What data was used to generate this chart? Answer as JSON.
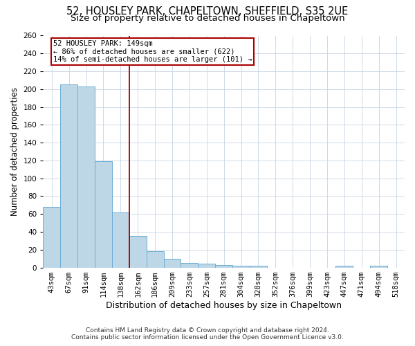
{
  "title1": "52, HOUSLEY PARK, CHAPELTOWN, SHEFFIELD, S35 2UE",
  "title2": "Size of property relative to detached houses in Chapeltown",
  "xlabel": "Distribution of detached houses by size in Chapeltown",
  "ylabel": "Number of detached properties",
  "footnote1": "Contains HM Land Registry data © Crown copyright and database right 2024.",
  "footnote2": "Contains public sector information licensed under the Open Government Licence v3.0.",
  "categories": [
    "43sqm",
    "67sqm",
    "91sqm",
    "114sqm",
    "138sqm",
    "162sqm",
    "186sqm",
    "209sqm",
    "233sqm",
    "257sqm",
    "281sqm",
    "304sqm",
    "328sqm",
    "352sqm",
    "376sqm",
    "399sqm",
    "423sqm",
    "447sqm",
    "471sqm",
    "494sqm",
    "518sqm"
  ],
  "values": [
    68,
    205,
    203,
    119,
    62,
    35,
    18,
    10,
    5,
    4,
    3,
    2,
    2,
    0,
    0,
    0,
    0,
    2,
    0,
    2,
    0
  ],
  "bar_color": "#BDD7E7",
  "bar_edge_color": "#6BAED6",
  "bar_linewidth": 0.7,
  "grid_color": "#C8D4E3",
  "annotation_line1": "52 HOUSLEY PARK: 149sqm",
  "annotation_line2": "← 86% of detached houses are smaller (622)",
  "annotation_line3": "14% of semi-detached houses are larger (101) →",
  "vline_color": "#AA0000",
  "box_color": "#AA0000",
  "ylim": [
    0,
    260
  ],
  "yticks": [
    0,
    20,
    40,
    60,
    80,
    100,
    120,
    140,
    160,
    180,
    200,
    220,
    240,
    260
  ],
  "bg_color": "#FFFFFF",
  "title1_fontsize": 10.5,
  "title2_fontsize": 9.5,
  "xlabel_fontsize": 9,
  "ylabel_fontsize": 8.5,
  "tick_fontsize": 7.5,
  "footnote_fontsize": 6.5
}
